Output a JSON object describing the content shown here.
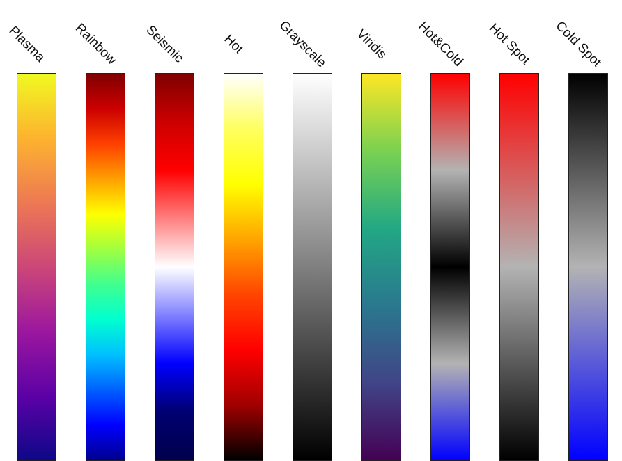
{
  "colormaps": [
    {
      "name": "Plasma",
      "stops": [
        "#f0f921",
        "#fdb32f",
        "#ed7953",
        "#cc4778",
        "#9c179e",
        "#5c01a6",
        "#0d0887"
      ]
    },
    {
      "name": "Rainbow",
      "stops": [
        "#7f0000",
        "#cc0000",
        "#ff4000",
        "#ffa000",
        "#ffff00",
        "#a0ff40",
        "#40ff90",
        "#00ffd0",
        "#00c0ff",
        "#0060ff",
        "#0000ff",
        "#00008f"
      ]
    },
    {
      "name": "Seismic",
      "stops": [
        "#7f0000",
        "#cc0000",
        "#ff0000",
        "#ff8080",
        "#ffffff",
        "#8080ff",
        "#0000ff",
        "#000070",
        "#00004c"
      ]
    },
    {
      "name": "Hot",
      "stops": [
        "#ffffff",
        "#ffff60",
        "#ffff00",
        "#ffa500",
        "#ff4500",
        "#ff0000",
        "#a00000",
        "#000000"
      ]
    },
    {
      "name": "Grayscale",
      "stops": [
        "#ffffff",
        "#000000"
      ]
    },
    {
      "name": "Viridis",
      "stops": [
        "#fde725",
        "#7ad151",
        "#22a884",
        "#2a788e",
        "#414487",
        "#440154"
      ]
    },
    {
      "name": "Hot&Cold",
      "stops": [
        "#ff0000",
        "#b3b3b3",
        "#000000",
        "#b3b3b3",
        "#0000ff"
      ]
    },
    {
      "name": "Hot Spot",
      "stops": [
        "#ff0000",
        "#b3b3b3",
        "#000000"
      ]
    },
    {
      "name": "Cold Spot",
      "stops": [
        "#000000",
        "#b3b3b3",
        "#0000ff"
      ]
    }
  ]
}
